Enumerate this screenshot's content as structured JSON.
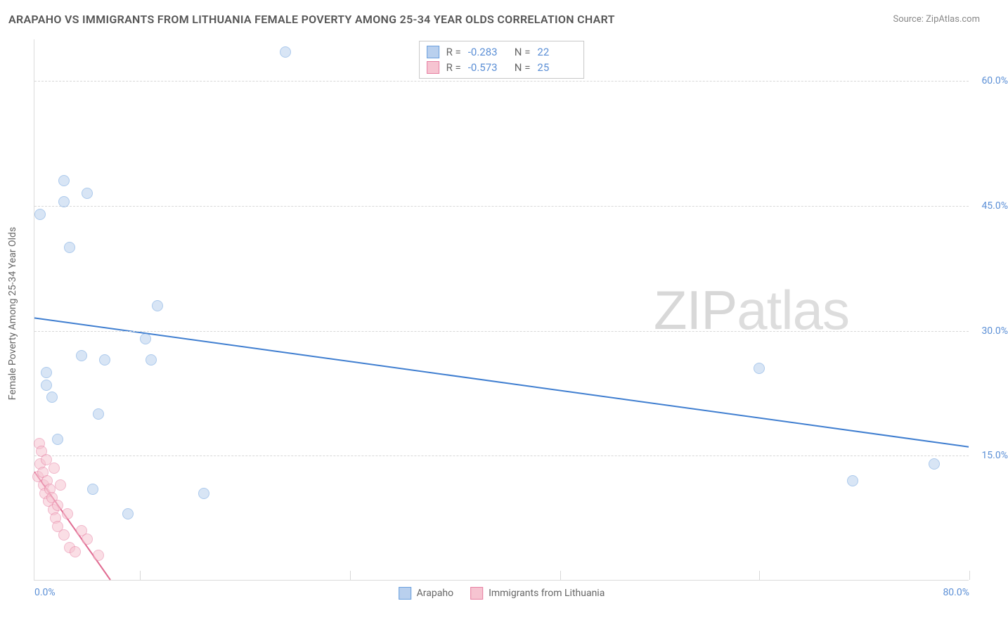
{
  "title": "ARAPAHO VS IMMIGRANTS FROM LITHUANIA FEMALE POVERTY AMONG 25-34 YEAR OLDS CORRELATION CHART",
  "source": "Source: ZipAtlas.com",
  "watermark_a": "ZIP",
  "watermark_b": "atlas",
  "y_axis_label": "Female Poverty Among 25-34 Year Olds",
  "chart": {
    "type": "scatter",
    "xlim": [
      0,
      80
    ],
    "ylim": [
      0,
      65
    ],
    "x_ticks": [
      0,
      80
    ],
    "x_tick_labels": [
      "0.0%",
      "80.0%"
    ],
    "y_ticks": [
      15,
      30,
      45,
      60
    ],
    "y_tick_labels": [
      "15.0%",
      "30.0%",
      "45.0%",
      "60.0%"
    ],
    "v_grid_positions": [
      9,
      27,
      45,
      62,
      80
    ],
    "background_color": "#ffffff",
    "grid_color": "#d8d8d8",
    "axis_color": "#dcdcdc",
    "tick_label_color": "#5b8fd6",
    "axis_label_color": "#666666",
    "title_color": "#555555",
    "title_fontsize": 16,
    "label_fontsize": 14,
    "point_radius": 8,
    "point_stroke_width": 1.5,
    "trend_line_width": 2
  },
  "series": [
    {
      "name": "Arapaho",
      "fill_color": "#b9d0ee",
      "stroke_color": "#6a9fde",
      "fill_opacity": 0.55,
      "R": "-0.283",
      "N": "22",
      "trend": {
        "x1": 0,
        "y1": 31.5,
        "x2": 80,
        "y2": 16.0,
        "color": "#3f7ed0"
      },
      "points": [
        [
          0.5,
          44.0
        ],
        [
          1.0,
          23.5
        ],
        [
          1.0,
          25.0
        ],
        [
          2.0,
          17.0
        ],
        [
          2.5,
          48.0
        ],
        [
          3.0,
          40.0
        ],
        [
          4.0,
          27.0
        ],
        [
          4.5,
          46.5
        ],
        [
          5.0,
          11.0
        ],
        [
          5.5,
          20.0
        ],
        [
          6.0,
          26.5
        ],
        [
          8.0,
          8.0
        ],
        [
          9.5,
          29.0
        ],
        [
          10.0,
          26.5
        ],
        [
          10.5,
          33.0
        ],
        [
          14.5,
          10.5
        ],
        [
          21.5,
          63.5
        ],
        [
          62.0,
          25.5
        ],
        [
          70.0,
          12.0
        ],
        [
          77.0,
          14.0
        ],
        [
          2.5,
          45.5
        ],
        [
          1.5,
          22.0
        ]
      ]
    },
    {
      "name": "Immigrants from Lithuania",
      "fill_color": "#f6c4d1",
      "stroke_color": "#e77fa2",
      "fill_opacity": 0.55,
      "R": "-0.573",
      "N": "25",
      "trend": {
        "x1": 0,
        "y1": 13.0,
        "x2": 6.5,
        "y2": 0.0,
        "color": "#e06b91"
      },
      "points": [
        [
          0.3,
          12.5
        ],
        [
          0.4,
          16.5
        ],
        [
          0.5,
          14.0
        ],
        [
          0.6,
          15.5
        ],
        [
          0.7,
          13.0
        ],
        [
          0.8,
          11.5
        ],
        [
          0.9,
          10.5
        ],
        [
          1.0,
          14.5
        ],
        [
          1.1,
          12.0
        ],
        [
          1.2,
          9.5
        ],
        [
          1.3,
          11.0
        ],
        [
          1.5,
          10.0
        ],
        [
          1.6,
          8.5
        ],
        [
          1.7,
          13.5
        ],
        [
          1.8,
          7.5
        ],
        [
          2.0,
          9.0
        ],
        [
          2.0,
          6.5
        ],
        [
          2.2,
          11.5
        ],
        [
          2.5,
          5.5
        ],
        [
          2.8,
          8.0
        ],
        [
          3.0,
          4.0
        ],
        [
          3.5,
          3.5
        ],
        [
          4.0,
          6.0
        ],
        [
          4.5,
          5.0
        ],
        [
          5.5,
          3.0
        ]
      ]
    }
  ],
  "stats_labels": {
    "R": "R =",
    "N": "N ="
  },
  "legend_labels": [
    "Arapaho",
    "Immigrants from Lithuania"
  ]
}
